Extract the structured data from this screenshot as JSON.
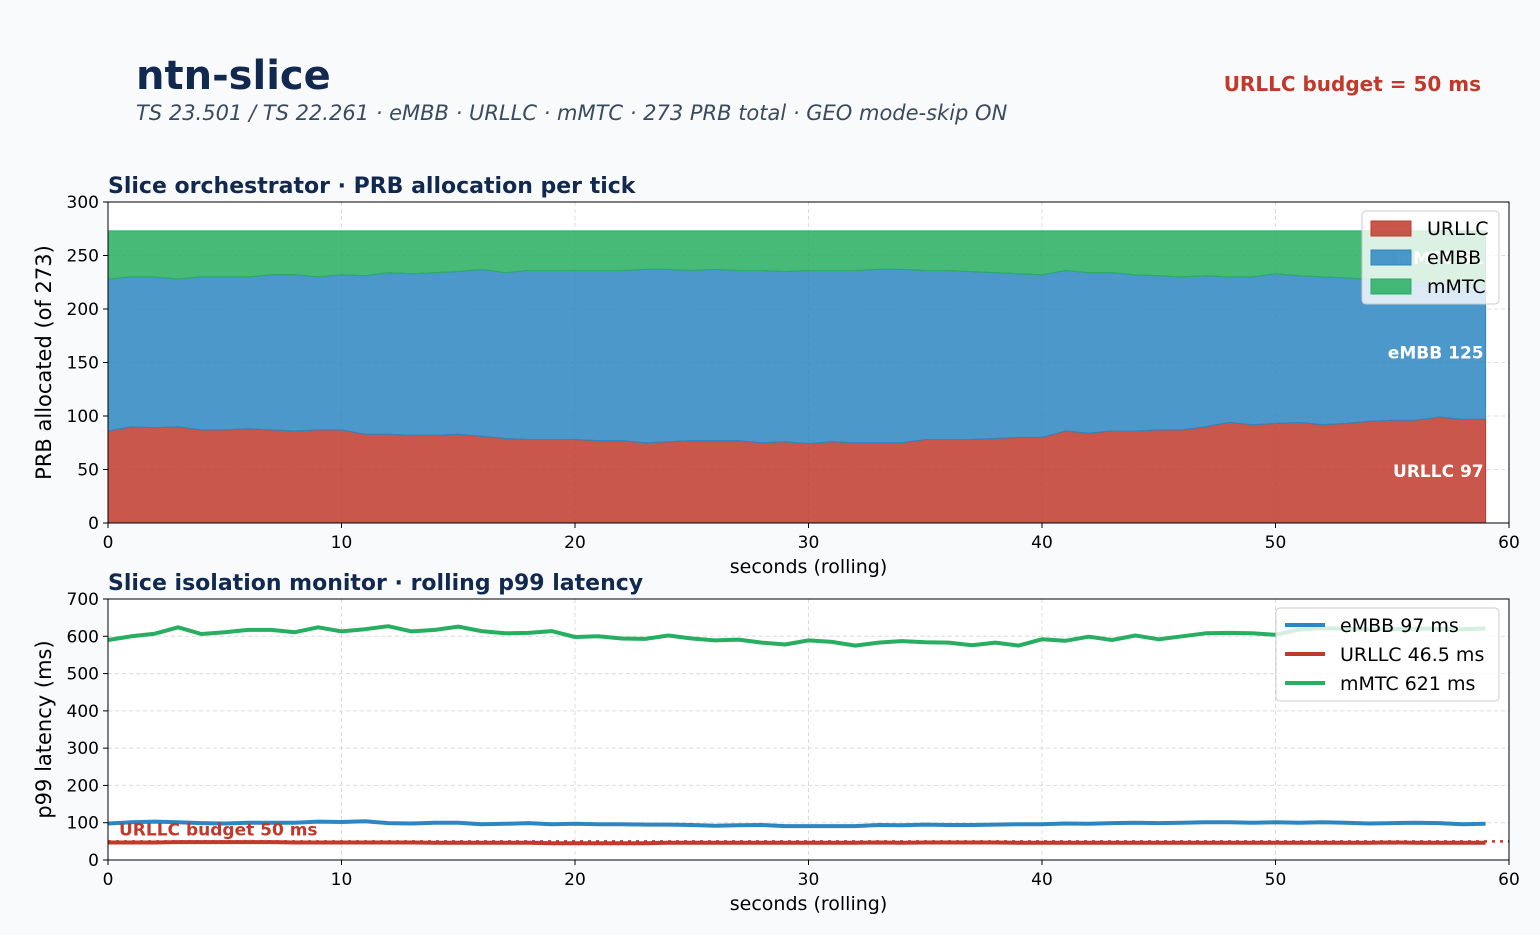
{
  "header": {
    "title": "ntn-slice",
    "subtitle": "TS 23.501 / TS 22.261  ·  eMBB · URLLC · mMTC  ·  273 PRB total  ·  GEO mode-skip ON",
    "budget_label": "URLLC budget = 50 ms"
  },
  "colors": {
    "urllc": "#c0392b",
    "embb": "#2e86c1",
    "mmtc": "#27ae60",
    "title": "#12294f"
  },
  "chart_data": [
    {
      "type": "area",
      "stacked": true,
      "title": "Slice orchestrator  ·  PRB allocation per tick",
      "xlabel": "seconds (rolling)",
      "ylabel": "PRB allocated (of 273)",
      "xlim": [
        0,
        60
      ],
      "ylim": [
        0,
        300
      ],
      "xticks": [
        0,
        10,
        20,
        30,
        40,
        50,
        60
      ],
      "yticks": [
        0,
        50,
        100,
        150,
        200,
        250,
        300
      ],
      "grid": true,
      "legend_position": "top-right",
      "total": 273,
      "x": [
        0,
        1,
        2,
        3,
        4,
        5,
        6,
        7,
        8,
        9,
        10,
        11,
        12,
        13,
        14,
        15,
        16,
        17,
        18,
        19,
        20,
        21,
        22,
        23,
        24,
        25,
        26,
        27,
        28,
        29,
        30,
        31,
        32,
        33,
        34,
        35,
        36,
        37,
        38,
        39,
        40,
        41,
        42,
        43,
        44,
        45,
        46,
        47,
        48,
        49,
        50,
        51,
        52,
        53,
        54,
        55,
        56,
        57,
        58,
        59
      ],
      "series": [
        {
          "name": "URLLC",
          "color": "#c0392b",
          "values": [
            86,
            90,
            89,
            90,
            87,
            87,
            88,
            87,
            86,
            87,
            87,
            83,
            83,
            82,
            82,
            83,
            81,
            79,
            78,
            78,
            78,
            77,
            77,
            75,
            76,
            77,
            77,
            77,
            75,
            76,
            74,
            76,
            75,
            75,
            75,
            78,
            78,
            78,
            79,
            80,
            80,
            86,
            84,
            86,
            86,
            87,
            87,
            90,
            94,
            92,
            93,
            94,
            92,
            93,
            95,
            96,
            96,
            99,
            97,
            97
          ],
          "end_label": "URLLC 97"
        },
        {
          "name": "eMBB",
          "color": "#2e86c1",
          "values": [
            142,
            140,
            141,
            138,
            143,
            143,
            142,
            145,
            146,
            143,
            145,
            148,
            151,
            151,
            152,
            152,
            156,
            155,
            158,
            158,
            158,
            159,
            159,
            162,
            161,
            159,
            160,
            159,
            161,
            159,
            162,
            160,
            161,
            162,
            162,
            158,
            158,
            157,
            155,
            153,
            152,
            150,
            150,
            148,
            146,
            144,
            143,
            141,
            136,
            138,
            140,
            137,
            138,
            136,
            133,
            131,
            130,
            125,
            126,
            125
          ],
          "end_label": "eMBB 125"
        },
        {
          "name": "mMTC",
          "color": "#27ae60",
          "values": [
            45,
            43,
            43,
            45,
            43,
            43,
            43,
            41,
            41,
            43,
            41,
            42,
            39,
            40,
            39,
            38,
            36,
            39,
            37,
            37,
            37,
            37,
            37,
            36,
            36,
            37,
            36,
            37,
            37,
            38,
            37,
            37,
            37,
            36,
            36,
            37,
            37,
            38,
            39,
            40,
            41,
            37,
            39,
            39,
            41,
            42,
            43,
            42,
            43,
            43,
            40,
            42,
            43,
            44,
            45,
            46,
            47,
            49,
            50,
            51
          ],
          "end_label": "mMTC 51"
        }
      ]
    },
    {
      "type": "line",
      "title": "Slice isolation monitor  ·  rolling p99 latency",
      "xlabel": "seconds (rolling)",
      "ylabel": "p99 latency (ms)",
      "xlim": [
        0,
        60
      ],
      "ylim": [
        0,
        700
      ],
      "xticks": [
        0,
        10,
        20,
        30,
        40,
        50,
        60
      ],
      "yticks": [
        0,
        100,
        200,
        300,
        400,
        500,
        600,
        700
      ],
      "grid": true,
      "legend_position": "top-right",
      "budget_line": {
        "value": 50,
        "label": "URLLC budget 50 ms"
      },
      "x": [
        0,
        1,
        2,
        3,
        4,
        5,
        6,
        7,
        8,
        9,
        10,
        11,
        12,
        13,
        14,
        15,
        16,
        17,
        18,
        19,
        20,
        21,
        22,
        23,
        24,
        25,
        26,
        27,
        28,
        29,
        30,
        31,
        32,
        33,
        34,
        35,
        36,
        37,
        38,
        39,
        40,
        41,
        42,
        43,
        44,
        45,
        46,
        47,
        48,
        49,
        50,
        51,
        52,
        53,
        54,
        55,
        56,
        57,
        58,
        59
      ],
      "series": [
        {
          "name": "eMBB  97 ms",
          "color": "#2e86c1",
          "values": [
            98,
            101,
            103,
            101,
            99,
            98,
            100,
            100,
            100,
            103,
            102,
            104,
            99,
            98,
            100,
            100,
            96,
            97,
            99,
            96,
            97,
            96,
            96,
            95,
            95,
            94,
            92,
            93,
            94,
            91,
            91,
            91,
            91,
            94,
            93,
            95,
            94,
            94,
            95,
            96,
            96,
            98,
            97,
            99,
            100,
            99,
            100,
            101,
            101,
            100,
            101,
            100,
            101,
            100,
            98,
            99,
            100,
            99,
            96,
            97
          ]
        },
        {
          "name": "URLLC 46.5 ms",
          "color": "#c0392b",
          "values": [
            47,
            47,
            47,
            48,
            48,
            48,
            48,
            48,
            47,
            47,
            47,
            47,
            47,
            47,
            46,
            46,
            46,
            46,
            46,
            45,
            45,
            45,
            45,
            45,
            46,
            46,
            46,
            46,
            46,
            46,
            46,
            46,
            46,
            47,
            46,
            47,
            47,
            47,
            47,
            46,
            46,
            46,
            46,
            46,
            46,
            46,
            46,
            46,
            46,
            46,
            46,
            46,
            46,
            46,
            46,
            47,
            46,
            46,
            46,
            46.5
          ]
        },
        {
          "name": "mMTC  621 ms",
          "color": "#27ae60",
          "values": [
            590,
            600,
            607,
            624,
            606,
            611,
            617,
            617,
            611,
            624,
            613,
            619,
            627,
            613,
            617,
            626,
            614,
            608,
            609,
            614,
            598,
            600,
            594,
            593,
            602,
            594,
            589,
            591,
            583,
            578,
            589,
            585,
            575,
            583,
            587,
            584,
            583,
            576,
            583,
            575,
            592,
            588,
            599,
            590,
            602,
            592,
            600,
            608,
            609,
            608,
            604,
            618,
            622,
            620,
            619,
            619,
            621,
            620,
            619,
            621
          ]
        }
      ]
    }
  ]
}
